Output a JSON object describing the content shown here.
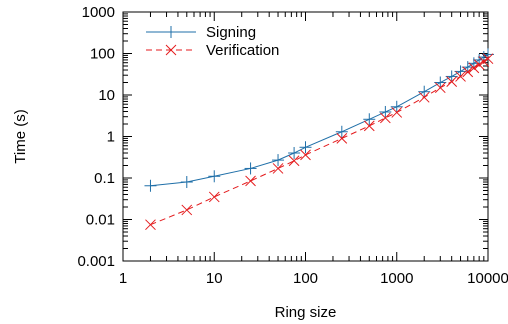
{
  "chart_data": {
    "type": "line",
    "xlabel": "Ring size",
    "ylabel": "Time (s)",
    "x_scale": "log",
    "y_scale": "log",
    "xlim": [
      1,
      10000
    ],
    "ylim": [
      0.001,
      1000
    ],
    "x_ticks": [
      {
        "value": 1,
        "label": "1"
      },
      {
        "value": 10,
        "label": "10"
      },
      {
        "value": 100,
        "label": "100"
      },
      {
        "value": 1000,
        "label": "1000"
      },
      {
        "value": 10000,
        "label": "10000"
      }
    ],
    "y_ticks": [
      {
        "value": 0.001,
        "label": "0.001"
      },
      {
        "value": 0.01,
        "label": "0.01"
      },
      {
        "value": 0.1,
        "label": "0.1"
      },
      {
        "value": 1,
        "label": "1"
      },
      {
        "value": 10,
        "label": "10"
      },
      {
        "value": 100,
        "label": "100"
      },
      {
        "value": 1000,
        "label": "1000"
      }
    ],
    "legend_position": "top-left",
    "grid": false,
    "series": [
      {
        "name": "Signing",
        "color": "#1f6fa8",
        "marker": "plus",
        "line_style": "solid",
        "x": [
          2,
          5,
          10,
          25,
          50,
          75,
          100,
          250,
          500,
          750,
          1000,
          2000,
          3000,
          4000,
          5000,
          6000,
          7000,
          8000,
          9000,
          10000
        ],
        "y": [
          0.065,
          0.08,
          0.11,
          0.17,
          0.27,
          0.4,
          0.55,
          1.3,
          2.6,
          3.9,
          5.2,
          12,
          20,
          28,
          37,
          47,
          58,
          70,
          82,
          95
        ]
      },
      {
        "name": "Verification",
        "color": "#e41a1c",
        "marker": "cross",
        "line_style": "dashed",
        "x": [
          2,
          5,
          10,
          25,
          50,
          75,
          100,
          250,
          500,
          750,
          1000,
          2000,
          3000,
          4000,
          5000,
          6000,
          7000,
          8000,
          9000,
          10000
        ],
        "y": [
          0.0075,
          0.017,
          0.035,
          0.085,
          0.17,
          0.26,
          0.36,
          0.9,
          1.8,
          2.8,
          3.8,
          8.8,
          15,
          21,
          28,
          36,
          45,
          54,
          64,
          75
        ]
      }
    ]
  }
}
